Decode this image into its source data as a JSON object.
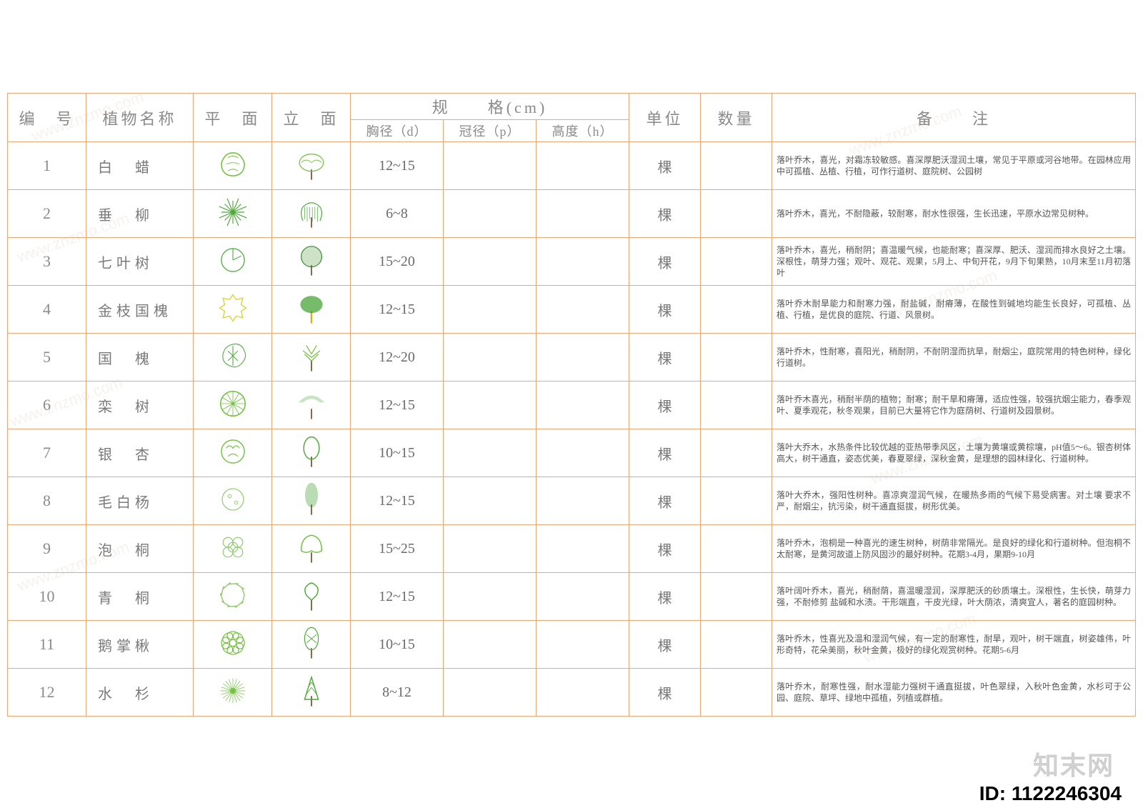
{
  "table": {
    "border_color": "#e8a878",
    "header_text_color": "#8a8a8a",
    "body_text_color": "#7a7a7a",
    "notes_text_color": "#555555",
    "notes_fontsize": 12,
    "header_fontsize": 22,
    "columns": {
      "id": "编　号",
      "name": "植物名称",
      "plan": "平　面",
      "elevation": "立　面",
      "spec": "规　　格(cm)",
      "spec_d": "胸径（d）",
      "spec_p": "冠径（p）",
      "spec_h": "高度（h）",
      "unit": "单位",
      "qty": "数量",
      "notes": "备　　注"
    },
    "rows": [
      {
        "id": "1",
        "name": "白　蜡",
        "plan_color": "#6fbf3a",
        "elev_color": "#6fbf3a",
        "d": "12~15",
        "p": "",
        "h": "",
        "unit": "棵",
        "qty": "",
        "notes": "落叶乔木，喜光，对霜冻较敏感。喜深厚肥沃湿润土壤，常见于平原或河谷地带。在园林应用中可孤植、丛植、行植，可作行道树、庭院树、公园树"
      },
      {
        "id": "2",
        "name": "垂　柳",
        "plan_color": "#4fa83a",
        "elev_color": "#4fa83a",
        "d": "6~8",
        "p": "",
        "h": "",
        "unit": "棵",
        "qty": "",
        "notes": "落叶乔木，喜光，不耐隐蔽，较耐寒，耐水性很强，生长迅速，平原水边常见树种。"
      },
      {
        "id": "3",
        "name": "七叶树",
        "plan_color": "#5ab04a",
        "elev_color": "#3a8c2a",
        "d": "15~20",
        "p": "",
        "h": "",
        "unit": "棵",
        "qty": "",
        "notes": "落叶乔木，喜光，稍耐阴；喜温暖气候，也能耐寒；喜深厚、肥沃、湿润而排水良好之土壤。深根性，萌芽力强；观叶、观花、观果，5月上、中旬开花，9月下旬果熟，10月末至11月初落叶"
      },
      {
        "id": "4",
        "name": "金枝国槐",
        "plan_color": "#d9d43a",
        "elev_color": "#3a9e2a",
        "d": "12~15",
        "p": "",
        "h": "",
        "unit": "棵",
        "qty": "",
        "notes": "落叶乔木耐旱能力和耐寒力强，耐盐碱，耐瘠薄，在酸性到碱地均能生长良好，可孤植、丛植、行植，是优良的庭院、行道、风景树。"
      },
      {
        "id": "5",
        "name": "国　槐",
        "plan_color": "#5ab04a",
        "elev_color": "#6fbf3a",
        "d": "12~20",
        "p": "",
        "h": "",
        "unit": "棵",
        "qty": "",
        "notes": "落叶乔木，性耐寒，喜阳光，稍耐阴，不耐阴湿而抗旱，耐烟尘，庭院常用的特色树种，绿化行道树。"
      },
      {
        "id": "6",
        "name": "栾　树",
        "plan_color": "#6fbf3a",
        "elev_color": "#4fa83a",
        "d": "12~15",
        "p": "",
        "h": "",
        "unit": "棵",
        "qty": "",
        "notes": "落叶乔木喜光，稍耐半荫的植物；耐寒；耐干旱和瘠薄，适应性强，较强抗烟尘能力，春季观叶、夏季观花，秋冬观果，目前已大量将它作为庭荫树、行道树及园景树。"
      },
      {
        "id": "7",
        "name": "银　杏",
        "plan_color": "#6fbf3a",
        "elev_color": "#4fa83a",
        "d": "10~15",
        "p": "",
        "h": "",
        "unit": "棵",
        "qty": "",
        "notes": "落叶大乔木，水热条件比较优越的亚热带季风区，土壤为黄壤或黄棕壤，pH值5～6。银杏树体高大，树干通直，姿态优美，春夏翠绿，深秋金黄，是理想的园林绿化、行道树种。"
      },
      {
        "id": "8",
        "name": "毛白杨",
        "plan_color": "#8cc96a",
        "elev_color": "#3a9e2a",
        "d": "12~15",
        "p": "",
        "h": "",
        "unit": "棵",
        "qty": "",
        "notes": "落叶大乔木，强阳性树种。喜凉爽湿润气候，在暖热多雨的气候下易受病害。对土壤 要求不严，耐烟尘，抗污染，树干通直挺拔，树形优美。"
      },
      {
        "id": "9",
        "name": "泡　桐",
        "plan_color": "#8cc96a",
        "elev_color": "#6fbf3a",
        "d": "15~25",
        "p": "",
        "h": "",
        "unit": "棵",
        "qty": "",
        "notes": "落叶乔木，泡桐是一种喜光的速生树种，树荫非常隔光。是良好的绿化和行道树种。但泡桐不太耐寒，是黄河故道上防风固沙的最好树种。花期3-4月，果期9-10月"
      },
      {
        "id": "10",
        "name": "青　桐",
        "plan_color": "#8cc96a",
        "elev_color": "#4fa83a",
        "d": "12~15",
        "p": "",
        "h": "",
        "unit": "棵",
        "qty": "",
        "notes": "落叶阔叶乔木，喜光，稍耐荫，喜温暖湿润，深厚肥沃的砂质壤土。深根性，生长快，萌芽力强，不耐修剪 盐碱和水渍。干形端直，干皮光绿，叶大荫浓，清爽宜人，著名的庭园树种。"
      },
      {
        "id": "11",
        "name": "鹅掌楸",
        "plan_color": "#6fbf3a",
        "elev_color": "#4fa83a",
        "d": "10~15",
        "p": "",
        "h": "",
        "unit": "棵",
        "qty": "",
        "notes": "落叶乔木，性喜光及温和湿润气候，有一定的耐寒性，耐旱，观叶，树干端直，树姿雄伟，叶形奇特，花朵美丽，秋叶金黄，极好的绿化观赏树种。花期5-6月"
      },
      {
        "id": "12",
        "name": "水　杉",
        "plan_color": "#6fbf3a",
        "elev_color": "#4fa83a",
        "d": "8~12",
        "p": "",
        "h": "",
        "unit": "棵",
        "qty": "",
        "notes": "落叶乔木，耐寒性强，耐水湿能力强树干通直挺拔，叶色翠绿，入秋叶色金黄，水杉可于公园、庭院、草坪、绿地中孤植，列植或群植。"
      }
    ]
  },
  "watermark": {
    "bg_text": "www.znzmo.com",
    "logo_text": "知末网",
    "id_label": "ID: 1122246304",
    "logo_color": "#d4d4d4",
    "id_color": "#000000"
  }
}
